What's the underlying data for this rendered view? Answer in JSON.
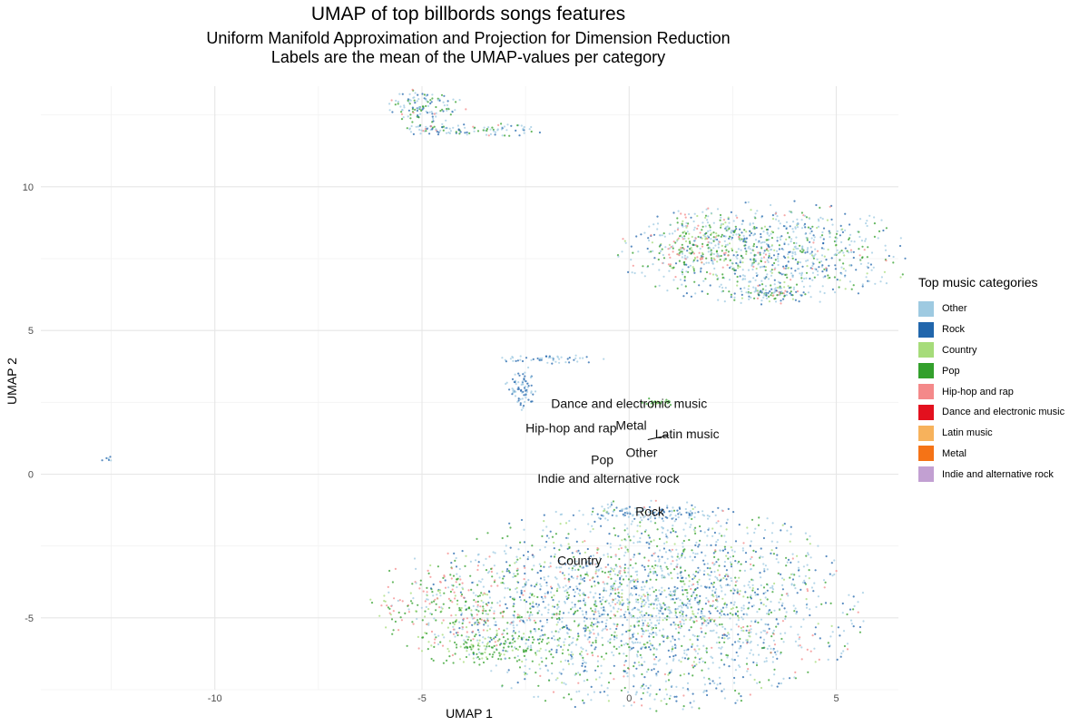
{
  "title": "UMAP of top billbords songs features",
  "subtitle": [
    "Uniform Manifold Approximation and Projection for Dimension Reduction",
    "Labels are the mean of the UMAP-values per category"
  ],
  "legend": {
    "title": "Top music categories",
    "items": [
      {
        "name": "Other",
        "color": "#9ecae1"
      },
      {
        "name": "Rock",
        "color": "#2166ac"
      },
      {
        "name": "Country",
        "color": "#a6dc7a"
      },
      {
        "name": "Pop",
        "color": "#33a02c"
      },
      {
        "name": "Hip-hop and rap",
        "color": "#f4898a"
      },
      {
        "name": "Dance and electronic music",
        "color": "#e3101e"
      },
      {
        "name": "Latin music",
        "color": "#f7b25c"
      },
      {
        "name": "Metal",
        "color": "#f57316"
      },
      {
        "name": "Indie and alternative rock",
        "color": "#c2a0d2"
      }
    ]
  },
  "chart_data": {
    "type": "scatter",
    "title": "UMAP of top billbords songs features",
    "xlabel": "UMAP 1",
    "ylabel": "UMAP 2",
    "xlim": [
      -14.2,
      6.5
    ],
    "ylim": [
      -7.5,
      13.5
    ],
    "xticks": [
      -10,
      -5,
      0,
      5
    ],
    "yticks": [
      -5,
      0,
      5,
      10
    ],
    "grid": true,
    "legend_position": "right",
    "clusters": [
      {
        "cx": -4.9,
        "cy": 12.8,
        "rx": 0.6,
        "ry": 0.4,
        "n": 120,
        "mix": "top"
      },
      {
        "cx": -4.7,
        "cy": 12.0,
        "rx": 0.5,
        "ry": 0.15,
        "n": 50,
        "mix": "top"
      },
      {
        "cx": -3.3,
        "cy": 12.0,
        "rx": 0.8,
        "ry": 0.15,
        "n": 60,
        "mix": "top"
      },
      {
        "cx": 3.3,
        "cy": 7.7,
        "rx": 2.2,
        "ry": 1.1,
        "n": 900,
        "mix": "main"
      },
      {
        "cx": 1.6,
        "cy": 8.0,
        "rx": 0.7,
        "ry": 0.6,
        "n": 150,
        "mix": "warm"
      },
      {
        "cx": 3.3,
        "cy": 6.3,
        "rx": 0.6,
        "ry": 0.2,
        "n": 80,
        "mix": "main"
      },
      {
        "cx": -1.9,
        "cy": 4.0,
        "rx": 0.8,
        "ry": 0.1,
        "n": 50,
        "mix": "blue"
      },
      {
        "cx": -2.6,
        "cy": 3.0,
        "rx": 0.25,
        "ry": 0.5,
        "n": 80,
        "mix": "blue"
      },
      {
        "cx": 0.7,
        "cy": 2.5,
        "rx": 0.3,
        "ry": 0.1,
        "n": 25,
        "mix": "green"
      },
      {
        "cx": -12.6,
        "cy": 0.5,
        "rx": 0.08,
        "ry": 0.08,
        "n": 6,
        "mix": "blue"
      },
      {
        "cx": 0.5,
        "cy": -1.35,
        "rx": 1.3,
        "ry": 0.2,
        "n": 120,
        "mix": "blue"
      },
      {
        "cx": 0.4,
        "cy": -4.6,
        "rx": 3.2,
        "ry": 2.2,
        "n": 2400,
        "mix": "main"
      },
      {
        "cx": -4.1,
        "cy": -4.6,
        "rx": 1.3,
        "ry": 1.2,
        "n": 300,
        "mix": "warm"
      },
      {
        "cx": -3.0,
        "cy": -6.1,
        "rx": 1.1,
        "ry": 0.4,
        "n": 120,
        "mix": "green"
      }
    ],
    "annotations": [
      {
        "text": "Dance and electronic music",
        "x": 0.0,
        "y": 2.3
      },
      {
        "text": "Metal",
        "x": 0.05,
        "y": 1.55
      },
      {
        "text": "Latin music",
        "x": 1.4,
        "y": 1.25
      },
      {
        "text": "Hip-hop and rap",
        "x": -1.4,
        "y": 1.45
      },
      {
        "text": "Other",
        "x": 0.3,
        "y": 0.6
      },
      {
        "text": "Pop",
        "x": -0.65,
        "y": 0.35
      },
      {
        "text": "Indie and alternative rock",
        "x": -0.5,
        "y": -0.3
      },
      {
        "text": "Rock",
        "x": 0.5,
        "y": -1.45
      },
      {
        "text": "Country",
        "x": -1.2,
        "y": -3.15
      }
    ]
  }
}
